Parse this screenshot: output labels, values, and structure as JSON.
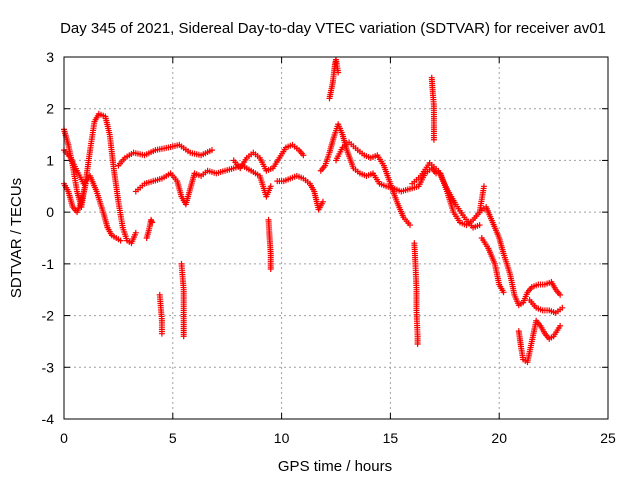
{
  "chart_data": {
    "type": "scatter",
    "title": "Day 345 of 2021, Sidereal Day-to-day VTEC variation (SDTVAR) for receiver av01",
    "xlabel": "GPS time / hours",
    "ylabel": "SDTVAR / TECUs",
    "xlim": [
      0,
      25
    ],
    "ylim": [
      -4,
      3
    ],
    "x_ticks": [
      0,
      5,
      10,
      15,
      20,
      25
    ],
    "y_ticks": [
      -4,
      -3,
      -2,
      -1,
      0,
      1,
      2,
      3
    ],
    "grid": true,
    "marker": "+",
    "series": [
      {
        "name": "SDTVAR",
        "color": "#ff0000",
        "traces": [
          [
            [
              0.0,
              1.6
            ],
            [
              0.2,
              1.3
            ],
            [
              0.4,
              0.9
            ],
            [
              0.6,
              0.4
            ],
            [
              0.8,
              0.1
            ],
            [
              1.0,
              0.6
            ],
            [
              1.2,
              1.2
            ],
            [
              1.4,
              1.75
            ],
            [
              1.6,
              1.9
            ],
            [
              1.9,
              1.85
            ],
            [
              2.1,
              1.5
            ],
            [
              2.3,
              0.8
            ],
            [
              2.5,
              0.2
            ],
            [
              2.7,
              -0.3
            ],
            [
              2.9,
              -0.55
            ],
            [
              3.1,
              -0.6
            ],
            [
              3.3,
              -0.4
            ]
          ],
          [
            [
              0.0,
              1.2
            ],
            [
              0.3,
              1.05
            ],
            [
              0.6,
              0.8
            ],
            [
              0.9,
              0.55
            ],
            [
              1.2,
              0.7
            ],
            [
              1.5,
              0.4
            ],
            [
              1.8,
              0.0
            ],
            [
              2.0,
              -0.3
            ],
            [
              2.2,
              -0.45
            ],
            [
              2.4,
              -0.5
            ],
            [
              2.6,
              -0.55
            ]
          ],
          [
            [
              0.0,
              0.55
            ],
            [
              0.2,
              0.4
            ],
            [
              0.4,
              0.1
            ],
            [
              0.6,
              0.0
            ],
            [
              0.8,
              0.2
            ],
            [
              1.0,
              0.55
            ]
          ],
          [
            [
              2.5,
              0.9
            ],
            [
              2.8,
              1.05
            ],
            [
              3.2,
              1.15
            ],
            [
              3.7,
              1.1
            ],
            [
              4.2,
              1.2
            ],
            [
              4.8,
              1.25
            ],
            [
              5.3,
              1.3
            ],
            [
              5.8,
              1.15
            ],
            [
              6.3,
              1.1
            ],
            [
              6.8,
              1.2
            ]
          ],
          [
            [
              3.3,
              0.4
            ],
            [
              3.7,
              0.55
            ],
            [
              4.1,
              0.6
            ],
            [
              4.5,
              0.65
            ],
            [
              4.9,
              0.75
            ],
            [
              5.2,
              0.6
            ],
            [
              5.4,
              0.3
            ],
            [
              5.6,
              0.15
            ],
            [
              5.8,
              0.45
            ],
            [
              6.0,
              0.75
            ],
            [
              6.3,
              0.7
            ],
            [
              6.6,
              0.8
            ],
            [
              7.0,
              0.75
            ],
            [
              7.4,
              0.8
            ],
            [
              7.8,
              0.85
            ],
            [
              8.2,
              0.9
            ],
            [
              8.6,
              0.8
            ],
            [
              9.0,
              0.7
            ],
            [
              9.3,
              0.3
            ],
            [
              9.5,
              0.5
            ]
          ],
          [
            [
              7.8,
              1.0
            ],
            [
              8.1,
              0.85
            ],
            [
              8.4,
              1.05
            ],
            [
              8.7,
              1.15
            ],
            [
              9.0,
              1.05
            ],
            [
              9.3,
              0.8
            ],
            [
              9.6,
              0.85
            ],
            [
              9.9,
              1.05
            ],
            [
              10.2,
              1.25
            ],
            [
              10.5,
              1.3
            ],
            [
              10.8,
              1.2
            ],
            [
              11.0,
              1.1
            ]
          ],
          [
            [
              9.8,
              0.6
            ],
            [
              10.1,
              0.6
            ],
            [
              10.4,
              0.65
            ],
            [
              10.7,
              0.7
            ],
            [
              11.0,
              0.65
            ],
            [
              11.3,
              0.55
            ],
            [
              11.5,
              0.4
            ],
            [
              11.7,
              0.05
            ],
            [
              11.9,
              0.2
            ]
          ],
          [
            [
              11.8,
              0.8
            ],
            [
              12.0,
              0.9
            ],
            [
              12.2,
              1.15
            ],
            [
              12.4,
              1.45
            ],
            [
              12.6,
              1.7
            ],
            [
              12.8,
              1.5
            ],
            [
              13.0,
              1.2
            ],
            [
              13.3,
              0.85
            ],
            [
              13.6,
              0.75
            ],
            [
              13.9,
              0.7
            ],
            [
              14.2,
              0.75
            ],
            [
              14.5,
              0.55
            ],
            [
              14.8,
              0.5
            ],
            [
              15.2,
              0.45
            ],
            [
              15.5,
              0.4
            ],
            [
              15.9,
              0.45
            ],
            [
              16.3,
              0.5
            ],
            [
              16.6,
              0.75
            ],
            [
              16.9,
              0.85
            ],
            [
              17.1,
              0.75
            ]
          ],
          [
            [
              12.5,
              1.0
            ],
            [
              12.8,
              1.25
            ],
            [
              13.1,
              1.35
            ],
            [
              13.5,
              1.2
            ],
            [
              13.8,
              1.1
            ],
            [
              14.1,
              1.05
            ],
            [
              14.4,
              1.1
            ],
            [
              14.7,
              0.9
            ],
            [
              15.0,
              0.55
            ],
            [
              15.3,
              0.2
            ],
            [
              15.6,
              -0.1
            ],
            [
              15.9,
              -0.25
            ]
          ],
          [
            [
              16.0,
              0.55
            ],
            [
              16.4,
              0.7
            ],
            [
              16.8,
              0.95
            ],
            [
              17.2,
              0.8
            ],
            [
              17.6,
              0.45
            ],
            [
              18.0,
              0.15
            ],
            [
              18.4,
              -0.1
            ],
            [
              18.8,
              -0.3
            ],
            [
              19.1,
              -0.25
            ]
          ],
          [
            [
              17.3,
              0.75
            ],
            [
              17.6,
              0.4
            ],
            [
              17.9,
              0.0
            ],
            [
              18.2,
              -0.2
            ],
            [
              18.5,
              -0.25
            ],
            [
              18.8,
              -0.15
            ],
            [
              19.1,
              0.0
            ],
            [
              19.4,
              0.1
            ],
            [
              19.7,
              -0.2
            ],
            [
              20.0,
              -0.5
            ],
            [
              20.2,
              -0.8
            ],
            [
              20.5,
              -1.2
            ],
            [
              20.7,
              -1.6
            ],
            [
              20.9,
              -1.8
            ],
            [
              21.1,
              -1.75
            ],
            [
              21.3,
              -1.55
            ],
            [
              21.5,
              -1.45
            ],
            [
              21.8,
              -1.4
            ],
            [
              22.1,
              -1.4
            ],
            [
              22.4,
              -1.35
            ],
            [
              22.6,
              -1.5
            ],
            [
              22.8,
              -1.6
            ]
          ],
          [
            [
              19.2,
              -0.5
            ],
            [
              19.5,
              -0.7
            ],
            [
              19.8,
              -1.0
            ],
            [
              20.0,
              -1.4
            ],
            [
              20.2,
              -1.55
            ]
          ],
          [
            [
              20.9,
              -2.3
            ],
            [
              21.0,
              -2.6
            ],
            [
              21.1,
              -2.85
            ],
            [
              21.3,
              -2.9
            ],
            [
              21.5,
              -2.5
            ],
            [
              21.7,
              -2.1
            ],
            [
              21.9,
              -2.2
            ],
            [
              22.1,
              -2.35
            ],
            [
              22.3,
              -2.45
            ],
            [
              22.5,
              -2.4
            ],
            [
              22.8,
              -2.2
            ]
          ],
          [
            [
              21.4,
              -1.7
            ],
            [
              21.7,
              -1.85
            ],
            [
              22.0,
              -1.9
            ],
            [
              22.3,
              -1.9
            ],
            [
              22.6,
              -1.95
            ],
            [
              22.9,
              -1.85
            ]
          ],
          [
            [
              3.8,
              -0.5
            ],
            [
              3.9,
              -0.35
            ],
            [
              4.0,
              -0.15
            ],
            [
              4.05,
              -0.2
            ]
          ],
          [
            [
              4.4,
              -1.6
            ],
            [
              4.45,
              -1.85
            ],
            [
              4.5,
              -2.1
            ],
            [
              4.5,
              -2.35
            ]
          ],
          [
            [
              5.4,
              -1.0
            ],
            [
              5.45,
              -1.25
            ],
            [
              5.5,
              -1.5
            ],
            [
              5.5,
              -2.1
            ],
            [
              5.5,
              -2.4
            ]
          ],
          [
            [
              9.4,
              -0.15
            ],
            [
              9.45,
              -0.5
            ],
            [
              9.5,
              -0.8
            ],
            [
              9.5,
              -1.1
            ]
          ],
          [
            [
              12.2,
              2.2
            ],
            [
              12.35,
              2.5
            ],
            [
              12.45,
              2.85
            ],
            [
              12.5,
              2.95
            ],
            [
              12.6,
              2.7
            ]
          ],
          [
            [
              16.1,
              -0.6
            ],
            [
              16.15,
              -1.0
            ],
            [
              16.2,
              -1.5
            ],
            [
              16.2,
              -1.9
            ],
            [
              16.25,
              -2.4
            ],
            [
              16.25,
              -2.55
            ]
          ],
          [
            [
              16.9,
              2.6
            ],
            [
              16.95,
              2.3
            ],
            [
              17.0,
              2.05
            ],
            [
              17.0,
              1.4
            ]
          ],
          [
            [
              19.1,
              0.0
            ],
            [
              19.2,
              0.25
            ],
            [
              19.3,
              0.5
            ]
          ]
        ]
      }
    ]
  }
}
